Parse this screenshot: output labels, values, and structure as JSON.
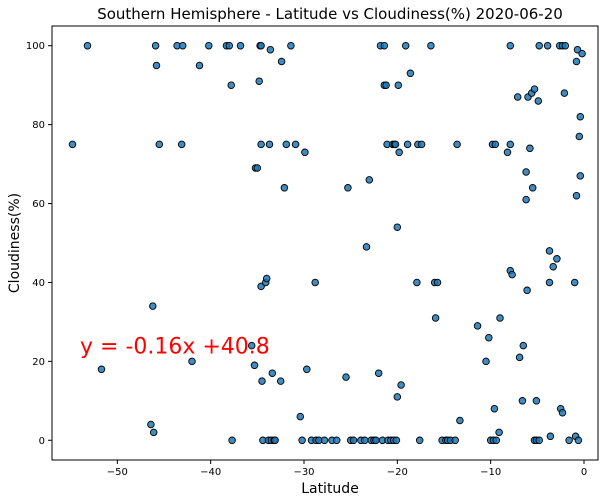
{
  "chart_data": {
    "type": "scatter",
    "title": "Southern Hemisphere - Latitude vs Cloudiness(%) 2020-06-20",
    "xlabel": "Latitude",
    "ylabel": "Cloudiness(%)",
    "xlim": [
      -57,
      1.5
    ],
    "ylim": [
      -5,
      105
    ],
    "xticks": [
      -50,
      -40,
      -30,
      -20,
      -10,
      0
    ],
    "yticks": [
      0,
      20,
      40,
      60,
      80,
      100
    ],
    "xtick_labels": [
      "−50",
      "−40",
      "−30",
      "−20",
      "−10",
      "0"
    ],
    "ytick_labels": [
      "0",
      "20",
      "40",
      "60",
      "80",
      "100"
    ],
    "grid": false,
    "marker_color": "#1f77b4",
    "marker_edge": "#000000",
    "annotation": {
      "text": "y = -0.16x +40.8",
      "color": "#ff0000",
      "x": -54,
      "y": 24
    },
    "points": [
      [
        -54.8,
        75
      ],
      [
        -53.2,
        100
      ],
      [
        -51.7,
        18
      ],
      [
        -46.4,
        4
      ],
      [
        -46.2,
        34
      ],
      [
        -46.1,
        2
      ],
      [
        -45.9,
        100
      ],
      [
        -45.8,
        95
      ],
      [
        -45.5,
        75
      ],
      [
        -43.6,
        100
      ],
      [
        -43.1,
        75
      ],
      [
        -43.0,
        100
      ],
      [
        -42.0,
        20
      ],
      [
        -41.2,
        95
      ],
      [
        -40.2,
        100
      ],
      [
        -38.3,
        100
      ],
      [
        -38.0,
        100
      ],
      [
        -37.8,
        90
      ],
      [
        -37.7,
        0
      ],
      [
        -36.8,
        100
      ],
      [
        -35.6,
        24
      ],
      [
        -35.3,
        19
      ],
      [
        -35.2,
        69
      ],
      [
        -35.0,
        69
      ],
      [
        -34.8,
        91
      ],
      [
        -34.7,
        100
      ],
      [
        -34.6,
        100
      ],
      [
        -34.6,
        75
      ],
      [
        -34.6,
        39
      ],
      [
        -34.5,
        15
      ],
      [
        -34.4,
        0
      ],
      [
        -34.1,
        40
      ],
      [
        -34.0,
        41
      ],
      [
        -33.8,
        0
      ],
      [
        -33.7,
        75
      ],
      [
        -33.6,
        99
      ],
      [
        -33.5,
        0
      ],
      [
        -33.4,
        17
      ],
      [
        -33.2,
        0
      ],
      [
        -33.1,
        0
      ],
      [
        -32.5,
        15
      ],
      [
        -32.4,
        96
      ],
      [
        -32.1,
        64
      ],
      [
        -31.9,
        75
      ],
      [
        -31.4,
        100
      ],
      [
        -30.9,
        75
      ],
      [
        -30.4,
        6
      ],
      [
        -30.2,
        0
      ],
      [
        -29.9,
        73
      ],
      [
        -29.7,
        18
      ],
      [
        -29.2,
        0
      ],
      [
        -28.8,
        40
      ],
      [
        -28.7,
        0
      ],
      [
        -28.4,
        0
      ],
      [
        -27.8,
        0
      ],
      [
        -27.0,
        0
      ],
      [
        -26.5,
        0
      ],
      [
        -25.5,
        16
      ],
      [
        -25.3,
        64
      ],
      [
        -25.0,
        0
      ],
      [
        -24.7,
        0
      ],
      [
        -23.9,
        0
      ],
      [
        -23.5,
        0
      ],
      [
        -23.3,
        49
      ],
      [
        -23.0,
        66
      ],
      [
        -22.8,
        0
      ],
      [
        -22.5,
        0
      ],
      [
        -22.3,
        0
      ],
      [
        -22.0,
        17
      ],
      [
        -21.8,
        100
      ],
      [
        -21.6,
        0
      ],
      [
        -21.4,
        90
      ],
      [
        -21.4,
        100
      ],
      [
        -21.2,
        90
      ],
      [
        -21.1,
        75
      ],
      [
        -21.0,
        0
      ],
      [
        -20.7,
        0
      ],
      [
        -20.5,
        75
      ],
      [
        -20.4,
        0
      ],
      [
        -20.3,
        75
      ],
      [
        -20.2,
        75
      ],
      [
        -20.1,
        0
      ],
      [
        -20.0,
        54
      ],
      [
        -20.0,
        11
      ],
      [
        -19.9,
        90
      ],
      [
        -19.8,
        73
      ],
      [
        -19.6,
        14
      ],
      [
        -19.1,
        100
      ],
      [
        -18.9,
        75
      ],
      [
        -18.6,
        93
      ],
      [
        -17.9,
        40
      ],
      [
        -17.8,
        75
      ],
      [
        -17.6,
        0
      ],
      [
        -17.4,
        75
      ],
      [
        -16.4,
        100
      ],
      [
        -16.0,
        40
      ],
      [
        -15.9,
        31
      ],
      [
        -15.7,
        40
      ],
      [
        -15.2,
        0
      ],
      [
        -14.8,
        0
      ],
      [
        -14.6,
        0
      ],
      [
        -14.3,
        0
      ],
      [
        -13.8,
        0
      ],
      [
        -13.6,
        75
      ],
      [
        -13.3,
        5
      ],
      [
        -11.4,
        29
      ],
      [
        -10.5,
        20
      ],
      [
        -10.2,
        26
      ],
      [
        -10.0,
        0
      ],
      [
        -9.8,
        75
      ],
      [
        -9.7,
        0
      ],
      [
        -9.6,
        8
      ],
      [
        -9.5,
        75
      ],
      [
        -9.4,
        0
      ],
      [
        -9.1,
        2
      ],
      [
        -9.0,
        31
      ],
      [
        -8.2,
        73
      ],
      [
        -7.9,
        75
      ],
      [
        -7.9,
        43
      ],
      [
        -7.7,
        42
      ],
      [
        -7.9,
        100
      ],
      [
        -7.1,
        87
      ],
      [
        -6.9,
        21
      ],
      [
        -6.6,
        10
      ],
      [
        -6.5,
        24
      ],
      [
        -6.2,
        68
      ],
      [
        -6.2,
        61
      ],
      [
        -6.1,
        38
      ],
      [
        -6.0,
        87
      ],
      [
        -5.8,
        74
      ],
      [
        -5.6,
        88
      ],
      [
        -5.5,
        64
      ],
      [
        -5.3,
        89
      ],
      [
        -5.3,
        0
      ],
      [
        -5.1,
        10
      ],
      [
        -5.1,
        0
      ],
      [
        -4.9,
        86
      ],
      [
        -4.8,
        100
      ],
      [
        -4.8,
        0
      ],
      [
        -3.9,
        100
      ],
      [
        -3.7,
        40
      ],
      [
        -3.7,
        48
      ],
      [
        -3.6,
        1
      ],
      [
        -3.3,
        44
      ],
      [
        -2.9,
        46
      ],
      [
        -2.6,
        100
      ],
      [
        -2.5,
        8
      ],
      [
        -2.3,
        7
      ],
      [
        -2.3,
        100
      ],
      [
        -2.1,
        88
      ],
      [
        -2.0,
        100
      ],
      [
        -1.6,
        0
      ],
      [
        -1.0,
        40
      ],
      [
        -0.9,
        1
      ],
      [
        -0.8,
        62
      ],
      [
        -0.8,
        96
      ],
      [
        -0.7,
        99
      ],
      [
        -0.6,
        0
      ],
      [
        -0.5,
        77
      ],
      [
        -0.4,
        82
      ],
      [
        -0.4,
        67
      ],
      [
        -0.2,
        98
      ]
    ]
  }
}
